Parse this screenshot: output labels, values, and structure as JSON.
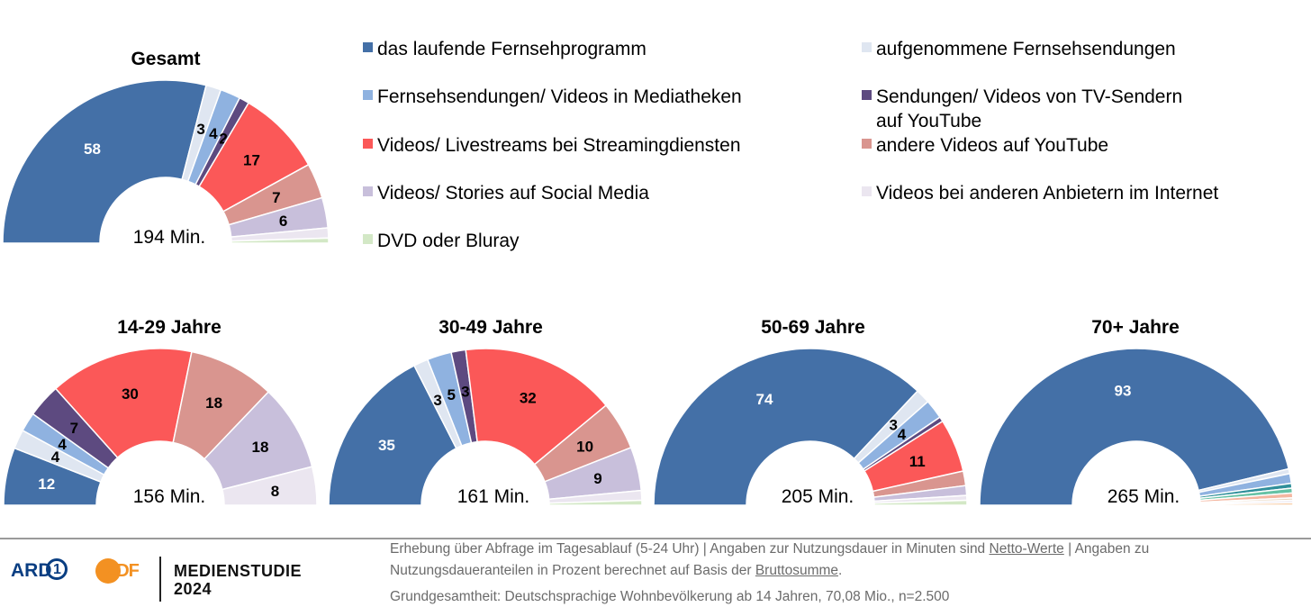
{
  "legend": [
    {
      "key": "live_tv",
      "label": "das laufende Fernsehprogramm",
      "color": "#4470a7"
    },
    {
      "key": "recorded",
      "label": "aufgenommene Fernsehsendungen",
      "color": "#dfe6f1"
    },
    {
      "key": "mediatheken",
      "label": "Fernsehsendungen/ Videos in Mediatheken",
      "color": "#8fb2e0"
    },
    {
      "key": "tv_youtube",
      "label_line1": "Sendungen/ Videos von TV-Sendern",
      "label_line2": "auf YouTube",
      "color": "#5d4a80"
    },
    {
      "key": "streaming",
      "label": "Videos/ Livestreams bei Streamingdiensten",
      "color": "#fb5858"
    },
    {
      "key": "other_youtube",
      "label": "andere Videos auf YouTube",
      "color": "#d9958f"
    },
    {
      "key": "social",
      "label": "Videos/ Stories auf Social Media",
      "color": "#c8bfdb"
    },
    {
      "key": "other_providers",
      "label": "Videos bei anderen Anbietern im Internet",
      "color": "#ebe6f0"
    },
    {
      "key": "dvd",
      "label": "DVD oder Bluray",
      "color": "#d3e8c6"
    }
  ],
  "chart_data": [
    {
      "type": "pie",
      "subtype": "half-donut",
      "title": "Gesamt",
      "center_label": "194 Min.",
      "categories": [
        "das laufende Fernsehprogramm",
        "aufgenommene Fernsehsendungen",
        "Fernsehsendungen/ Videos in Mediatheken",
        "Sendungen/ Videos von TV-Sendern auf YouTube",
        "Videos/ Livestreams bei Streamingdiensten",
        "andere Videos auf YouTube",
        "Videos/ Stories auf Social Media",
        "Videos bei anderen Anbietern im Internet",
        "DVD oder Bluray"
      ],
      "values": [
        58,
        3,
        4,
        2,
        17,
        7,
        6,
        2,
        1
      ],
      "data_labels": [
        "58",
        "3",
        "4",
        "2",
        "17",
        "7",
        "6",
        "",
        ""
      ]
    },
    {
      "type": "pie",
      "subtype": "half-donut",
      "title": "14-29 Jahre",
      "center_label": "156 Min.",
      "categories": [
        "das laufende Fernsehprogramm",
        "aufgenommene Fernsehsendungen",
        "Fernsehsendungen/ Videos in Mediatheken",
        "Sendungen/ Videos von TV-Sendern auf YouTube",
        "Videos/ Livestreams bei Streamingdiensten",
        "andere Videos auf YouTube",
        "Videos/ Stories auf Social Media",
        "Videos bei anderen Anbietern im Internet",
        "DVD oder Bluray"
      ],
      "values": [
        12,
        4,
        4,
        7,
        30,
        18,
        18,
        8,
        0
      ],
      "data_labels": [
        "12",
        "4",
        "4",
        "7",
        "30",
        "18",
        "18",
        "8",
        ""
      ]
    },
    {
      "type": "pie",
      "subtype": "half-donut",
      "title": "30-49 Jahre",
      "center_label": "161 Min.",
      "categories": [
        "das laufende Fernsehprogramm",
        "aufgenommene Fernsehsendungen",
        "Fernsehsendungen/ Videos in Mediatheken",
        "Sendungen/ Videos von TV-Sendern auf YouTube",
        "Videos/ Livestreams bei Streamingdiensten",
        "andere Videos auf YouTube",
        "Videos/ Stories auf Social Media",
        "Videos bei anderen Anbietern im Internet",
        "DVD oder Bluray"
      ],
      "values": [
        35,
        3,
        5,
        3,
        32,
        10,
        9,
        2,
        1
      ],
      "data_labels": [
        "35",
        "3",
        "5",
        "3",
        "32",
        "10",
        "9",
        "",
        ""
      ]
    },
    {
      "type": "pie",
      "subtype": "half-donut",
      "title": "50-69 Jahre",
      "center_label": "205 Min.",
      "categories": [
        "das laufende Fernsehprogramm",
        "aufgenommene Fernsehsendungen",
        "Fernsehsendungen/ Videos in Mediatheken",
        "Sendungen/ Videos von TV-Sendern auf YouTube",
        "Videos/ Livestreams bei Streamingdiensten",
        "andere Videos auf YouTube",
        "Videos/ Stories auf Social Media",
        "Videos bei anderen Anbietern im Internet",
        "DVD oder Bluray"
      ],
      "values": [
        74,
        3,
        4,
        1,
        11,
        3,
        2,
        1,
        1
      ],
      "data_labels": [
        "74",
        "3",
        "4",
        "",
        "11",
        "",
        "",
        "",
        ""
      ]
    },
    {
      "type": "pie",
      "subtype": "half-donut",
      "title": "70+ Jahre",
      "center_label": "265 Min.",
      "categories": [
        "das laufende Fernsehprogramm",
        "aufgenommene Fernsehsendungen",
        "Fernsehsendungen/ Videos in Mediatheken",
        "Sendungen/ Videos von TV-Sendern auf YouTube",
        "Videos/ Livestreams bei Streamingdiensten",
        "andere Videos auf YouTube",
        "Videos/ Stories auf Social Media",
        "Videos bei anderen Anbietern im Internet",
        "DVD oder Bluray"
      ],
      "values": [
        93,
        1,
        2,
        1,
        1,
        1,
        0.5,
        0.5,
        0.5
      ],
      "data_labels": [
        "93",
        "",
        "",
        "",
        "",
        "",
        "",
        "",
        ""
      ],
      "series_colors_override": [
        "#4470a7",
        "#dfe6f1",
        "#8fb2e0",
        "#2f8f9a",
        "#66c2a5",
        "#f4b6a0",
        "#e8d5c0",
        "#ebe6f0",
        "#f6c89f"
      ]
    }
  ],
  "footer": {
    "ard": "ARD",
    "ard_one": "1",
    "zdf": "ZDF",
    "brand_line1": "MEDIENSTUDIE",
    "brand_line2": "2024",
    "note1_a": "Erhebung über Abfrage im Tagesablauf (5-24 Uhr) | Angaben zur Nutzungsdauer in Minuten sind ",
    "note1_link": "Netto-Werte",
    "note1_b": " | Angaben zu",
    "note2_a": "Nutzungsdaueranteilen in Prozent berechnet auf Basis der ",
    "note2_link": "Bruttosumme",
    "note2_b": ".",
    "note3": "Grundgesamtheit: Deutschsprachige Wohnbevölkerung ab 14 Jahren, 70,08 Mio., n=2.500"
  }
}
